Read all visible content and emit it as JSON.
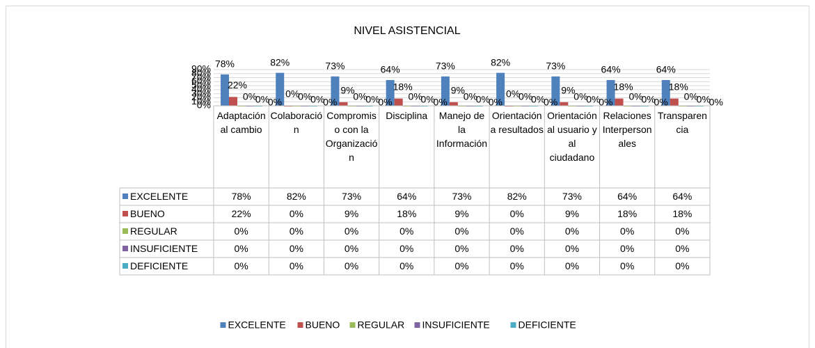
{
  "chart_data": {
    "type": "bar",
    "title": "NIVEL ASISTENCIAL",
    "categories": [
      "Adaptación al cambio",
      "Colaboración",
      "Compromiso con la Organización",
      "Disciplina",
      "Manejo de la Información",
      "Orientación a resultados",
      "Orientación al usuario y al ciudadano",
      "Relaciones Interpersonales",
      "Transparencia"
    ],
    "series": [
      {
        "name": "EXCELENTE",
        "color": "#4f81bd",
        "values": [
          78,
          82,
          73,
          64,
          73,
          82,
          73,
          64,
          64
        ],
        "value_labels": [
          "78%",
          "82%",
          "73%",
          "64%",
          "73%",
          "82%",
          "73%",
          "64%",
          "64%"
        ]
      },
      {
        "name": "BUENO",
        "color": "#c0504d",
        "values": [
          22,
          0,
          9,
          18,
          9,
          0,
          9,
          18,
          18
        ],
        "value_labels": [
          "22%",
          "0%",
          "9%",
          "18%",
          "9%",
          "0%",
          "9%",
          "18%",
          "18%"
        ]
      },
      {
        "name": "REGULAR",
        "color": "#9bbb59",
        "values": [
          0,
          0,
          0,
          0,
          0,
          0,
          0,
          0,
          0
        ],
        "value_labels": [
          "0%",
          "0%",
          "0%",
          "0%",
          "0%",
          "0%",
          "0%",
          "0%",
          "0%"
        ]
      },
      {
        "name": "INSUFICIENTE",
        "color": "#8064a2",
        "values": [
          0,
          0,
          0,
          0,
          0,
          0,
          0,
          0,
          0
        ],
        "value_labels": [
          "0%",
          "0%",
          "0%",
          "0%",
          "0%",
          "0%",
          "0%",
          "0%",
          "0%"
        ]
      },
      {
        "name": "DEFICIENTE",
        "color": "#4bacc6",
        "values": [
          0,
          0,
          0,
          0,
          0,
          0,
          0,
          0,
          0
        ],
        "value_labels": [
          "0%",
          "0%",
          "0%",
          "0%",
          "0%",
          "0%",
          "0%",
          "0%",
          "0%"
        ]
      }
    ],
    "ylim": [
      0,
      90
    ],
    "yticks": [
      {
        "value": 0,
        "label": "0%"
      },
      {
        "value": 10,
        "label": "10%"
      },
      {
        "value": 20,
        "label": "20%"
      },
      {
        "value": 30,
        "label": "30%"
      },
      {
        "value": 40,
        "label": "40%"
      },
      {
        "value": 50,
        "label": "50%"
      },
      {
        "value": 60,
        "label": "60%"
      },
      {
        "value": 70,
        "label": "70%"
      },
      {
        "value": 80,
        "label": "80%"
      },
      {
        "value": 90,
        "label": "90%"
      }
    ],
    "grid": true,
    "legend": "bottom"
  }
}
